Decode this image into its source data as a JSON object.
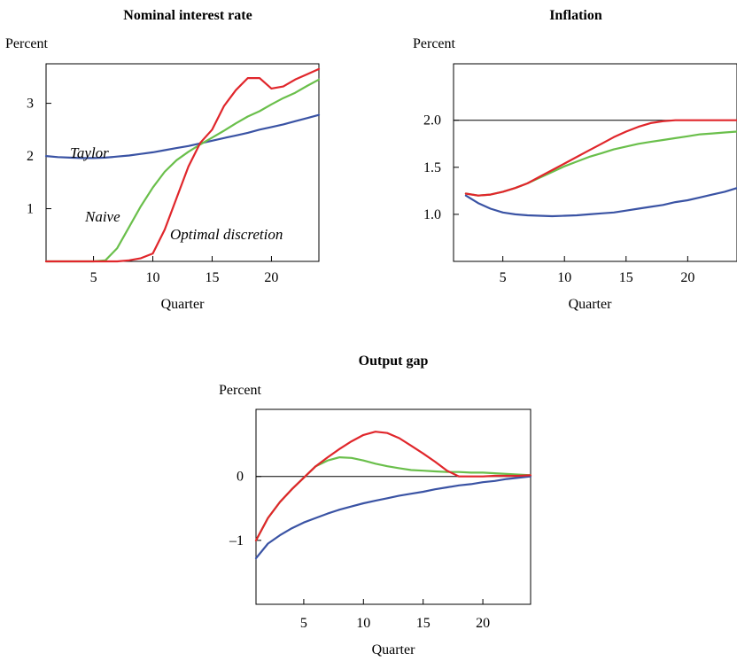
{
  "chart_data": [
    {
      "type": "line",
      "title": "Nominal interest rate",
      "ylabel": "Percent",
      "xlabel": "Quarter",
      "xlim": [
        1,
        24
      ],
      "ylim": [
        0,
        3.75
      ],
      "xticks": [
        5,
        10,
        15,
        20
      ],
      "yticks": [
        1,
        2,
        3
      ],
      "ytick_labels": [
        "1",
        "2",
        "3"
      ],
      "reference_lines": [
        3.75
      ],
      "series": [
        {
          "name": "Taylor",
          "color": "#3a53a4",
          "x": [
            1,
            2,
            3,
            4,
            5,
            6,
            7,
            8,
            9,
            10,
            11,
            12,
            13,
            14,
            15,
            16,
            17,
            18,
            19,
            20,
            21,
            22,
            23,
            24
          ],
          "y": [
            2.0,
            1.98,
            1.97,
            1.96,
            1.96,
            1.97,
            1.99,
            2.01,
            2.04,
            2.07,
            2.11,
            2.15,
            2.19,
            2.24,
            2.29,
            2.34,
            2.39,
            2.44,
            2.5,
            2.55,
            2.6,
            2.66,
            2.72,
            2.78
          ]
        },
        {
          "name": "Naive",
          "color": "#6abf4b",
          "x": [
            1,
            2,
            3,
            4,
            5,
            6,
            7,
            8,
            9,
            10,
            11,
            12,
            13,
            14,
            15,
            16,
            17,
            18,
            19,
            20,
            21,
            22,
            23,
            24
          ],
          "y": [
            0,
            0,
            0,
            0,
            0,
            0.02,
            0.25,
            0.65,
            1.05,
            1.4,
            1.7,
            1.92,
            2.08,
            2.22,
            2.35,
            2.48,
            2.62,
            2.75,
            2.85,
            2.98,
            3.1,
            3.2,
            3.33,
            3.45
          ]
        },
        {
          "name": "Optimal discretion",
          "color": "#e0262b",
          "x": [
            1,
            2,
            3,
            4,
            5,
            6,
            7,
            8,
            9,
            10,
            11,
            12,
            13,
            14,
            15,
            16,
            17,
            18,
            19,
            20,
            21,
            22,
            23,
            24
          ],
          "y": [
            0,
            0,
            0,
            0,
            0,
            0,
            0,
            0.02,
            0.06,
            0.15,
            0.6,
            1.2,
            1.8,
            2.25,
            2.5,
            2.95,
            3.25,
            3.48,
            3.48,
            3.28,
            3.32,
            3.45,
            3.55,
            3.65
          ]
        }
      ],
      "annotations": [
        {
          "text": "Taylor",
          "series": "Taylor"
        },
        {
          "text": "Naive",
          "series": "Naive"
        },
        {
          "text": "Optimal discretion",
          "series": "Optimal discretion"
        }
      ]
    },
    {
      "type": "line",
      "title": "Inflation",
      "ylabel": "Percent",
      "xlabel": "Quarter",
      "xlim": [
        1,
        24
      ],
      "ylim": [
        0.5,
        2.6
      ],
      "xticks": [
        5,
        10,
        15,
        20
      ],
      "yticks": [
        1.0,
        1.5,
        2.0
      ],
      "ytick_labels": [
        "1.0",
        "1.5",
        "2.0"
      ],
      "reference_lines": [
        2.0
      ],
      "series": [
        {
          "name": "Taylor",
          "color": "#3a53a4",
          "x": [
            2,
            3,
            4,
            5,
            6,
            7,
            8,
            9,
            10,
            11,
            12,
            13,
            14,
            15,
            16,
            17,
            18,
            19,
            20,
            21,
            22,
            23,
            24
          ],
          "y": [
            1.2,
            1.12,
            1.06,
            1.02,
            1.0,
            0.99,
            0.985,
            0.98,
            0.985,
            0.99,
            1.0,
            1.01,
            1.02,
            1.04,
            1.06,
            1.08,
            1.1,
            1.13,
            1.15,
            1.18,
            1.21,
            1.24,
            1.28
          ]
        },
        {
          "name": "Naive",
          "color": "#6abf4b",
          "x": [
            2,
            3,
            4,
            5,
            6,
            7,
            8,
            9,
            10,
            11,
            12,
            13,
            14,
            15,
            16,
            17,
            18,
            19,
            20,
            21,
            22,
            23,
            24
          ],
          "y": [
            1.22,
            1.2,
            1.21,
            1.24,
            1.28,
            1.33,
            1.39,
            1.45,
            1.51,
            1.56,
            1.61,
            1.65,
            1.69,
            1.72,
            1.75,
            1.77,
            1.79,
            1.81,
            1.83,
            1.85,
            1.86,
            1.87,
            1.88
          ]
        },
        {
          "name": "Optimal discretion",
          "color": "#e0262b",
          "x": [
            2,
            3,
            4,
            5,
            6,
            7,
            8,
            9,
            10,
            11,
            12,
            13,
            14,
            15,
            16,
            17,
            18,
            19,
            20,
            21,
            22,
            23,
            24
          ],
          "y": [
            1.22,
            1.2,
            1.21,
            1.24,
            1.28,
            1.33,
            1.4,
            1.47,
            1.54,
            1.61,
            1.68,
            1.75,
            1.82,
            1.88,
            1.93,
            1.97,
            1.99,
            2.0,
            2.0,
            2.0,
            2.0,
            2.0,
            2.0
          ]
        }
      ]
    },
    {
      "type": "line",
      "title": "Output gap",
      "ylabel": "Percent",
      "xlabel": "Quarter",
      "xlim": [
        1,
        24
      ],
      "ylim": [
        -2.0,
        1.05
      ],
      "xticks": [
        5,
        10,
        15,
        20
      ],
      "yticks": [
        0,
        -1
      ],
      "ytick_labels": [
        "0",
        "–1"
      ],
      "reference_lines": [
        0
      ],
      "series": [
        {
          "name": "Taylor",
          "color": "#3a53a4",
          "x": [
            1,
            2,
            3,
            4,
            5,
            6,
            7,
            8,
            9,
            10,
            11,
            12,
            13,
            14,
            15,
            16,
            17,
            18,
            19,
            20,
            21,
            22,
            23,
            24
          ],
          "y": [
            -1.28,
            -1.05,
            -0.92,
            -0.81,
            -0.72,
            -0.65,
            -0.58,
            -0.52,
            -0.47,
            -0.42,
            -0.38,
            -0.34,
            -0.3,
            -0.27,
            -0.24,
            -0.2,
            -0.17,
            -0.14,
            -0.12,
            -0.09,
            -0.07,
            -0.04,
            -0.02,
            0.0
          ]
        },
        {
          "name": "Naive",
          "color": "#6abf4b",
          "x": [
            1,
            2,
            3,
            4,
            5,
            6,
            7,
            8,
            9,
            10,
            11,
            12,
            13,
            14,
            15,
            16,
            17,
            18,
            19,
            20,
            21,
            22,
            23,
            24
          ],
          "y": [
            -1.0,
            -0.65,
            -0.4,
            -0.2,
            -0.02,
            0.16,
            0.25,
            0.3,
            0.29,
            0.25,
            0.2,
            0.16,
            0.13,
            0.1,
            0.09,
            0.08,
            0.07,
            0.07,
            0.06,
            0.06,
            0.05,
            0.04,
            0.03,
            0.02
          ]
        },
        {
          "name": "Optimal discretion",
          "color": "#e0262b",
          "x": [
            1,
            2,
            3,
            4,
            5,
            6,
            7,
            8,
            9,
            10,
            11,
            12,
            13,
            14,
            15,
            16,
            17,
            18,
            19,
            20,
            21,
            22,
            23,
            24
          ],
          "y": [
            -1.0,
            -0.65,
            -0.4,
            -0.2,
            -0.02,
            0.16,
            0.3,
            0.43,
            0.55,
            0.65,
            0.7,
            0.68,
            0.6,
            0.48,
            0.36,
            0.23,
            0.09,
            0.0,
            0.0,
            0.0,
            0.01,
            0.01,
            0.01,
            0.02
          ]
        }
      ]
    }
  ]
}
